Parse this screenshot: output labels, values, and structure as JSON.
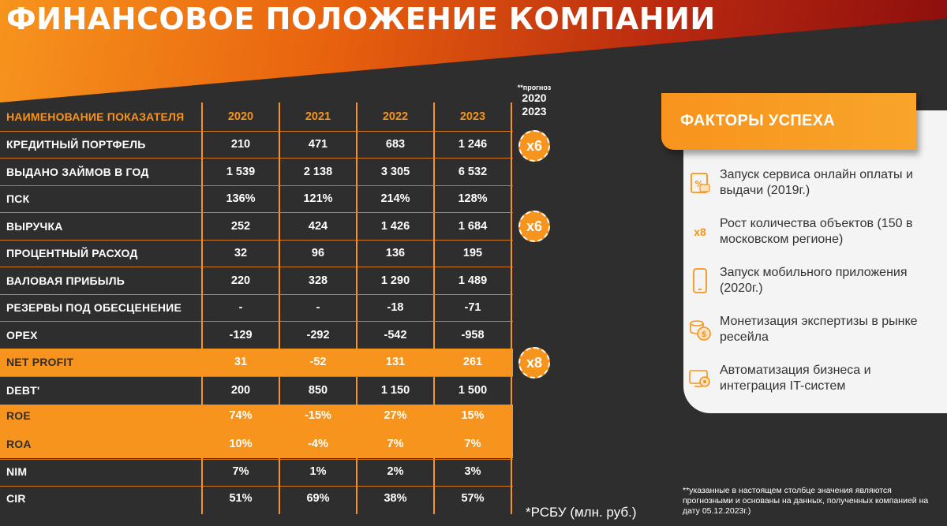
{
  "title": "ФИНАНСОВОЕ ПОЛОЖЕНИЕ КОМПАНИИ",
  "forecast": {
    "note": "**прогноз",
    "line1": "2020",
    "line2": "2023"
  },
  "table": {
    "header": {
      "label": "НАИМЕНОВАНИЕ ПОКАЗАТЕЛЯ",
      "years": [
        "2020",
        "2021",
        "2022",
        "2023"
      ]
    },
    "rows": [
      {
        "label": "КРЕДИТНЫЙ ПОРТФЕЛЬ",
        "values": [
          "210",
          "471",
          "683",
          "1 246"
        ]
      },
      {
        "label": "ВЫДАНО ЗАЙМОВ В ГОД",
        "values": [
          "1 539",
          "2 138",
          "3 305",
          "6 532"
        ]
      },
      {
        "label": "ПСК",
        "values": [
          "136%",
          "121%",
          "214%",
          "128%"
        ]
      },
      {
        "label": "ВЫРУЧКА",
        "values": [
          "252",
          "424",
          "1 426",
          "1 684"
        ]
      },
      {
        "label": "ПРОЦЕНТНЫЙ РАСХОД",
        "values": [
          "32",
          "96",
          "136",
          "195"
        ]
      },
      {
        "label": "ВАЛОВАЯ ПРИБЫЛЬ",
        "values": [
          "220",
          "328",
          "1 290",
          "1 489"
        ]
      },
      {
        "label": "РЕЗЕРВЫ ПОД ОБЕСЦЕНЕНИЕ",
        "values": [
          "-",
          "-",
          "-18",
          "-71"
        ]
      },
      {
        "label": "OPEX",
        "values": [
          "-129",
          "-292",
          "-542",
          "-958"
        ]
      },
      {
        "label": "NET PROFIT",
        "values": [
          "31",
          "-52",
          "131",
          "261"
        ]
      },
      {
        "label": "DEBT'",
        "values": [
          "200",
          "850",
          "1 150",
          "1 500"
        ]
      },
      {
        "label": "ROE",
        "values": [
          "74%",
          "-15%",
          "27%",
          "15%"
        ]
      },
      {
        "label": "ROA",
        "values": [
          "10%",
          "-4%",
          "7%",
          "7%"
        ]
      },
      {
        "label": "NIM",
        "values": [
          "7%",
          "1%",
          "2%",
          "3%"
        ]
      },
      {
        "label": "CIR",
        "values": [
          "51%",
          "69%",
          "38%",
          "57%"
        ]
      }
    ]
  },
  "multipliers": [
    "x6",
    "x6",
    "x8"
  ],
  "panel": {
    "title": "ФАКТОРЫ УСПЕХА",
    "factors": [
      {
        "icon": "online-payment-icon",
        "text": "Запуск сервиса онлайн оплаты и выдачи (2019г.)"
      },
      {
        "icon": "x8-icon",
        "badge": "x8",
        "text": "Рост количества объектов (150 в московском регионе)"
      },
      {
        "icon": "mobile-phone-icon",
        "text": "Запуск мобильного приложения (2020г.)"
      },
      {
        "icon": "coins-icon",
        "text": "Монетизация экспертизы в рынке ресейла"
      },
      {
        "icon": "automation-gear-icon",
        "text": "Автоматизация бизнеса и интеграция IT-систем"
      }
    ]
  },
  "footnotes": {
    "unit": "*РСБУ (млн. руб.)",
    "forecast_note": "**указанные в настоящем столбце значения являются прогнозными и основаны на данных, полученных компанией на дату 05.12.2023г.)"
  },
  "colors": {
    "accent": "#f7941d",
    "background": "#2e2e2e",
    "panel": "#f4f4f4"
  }
}
